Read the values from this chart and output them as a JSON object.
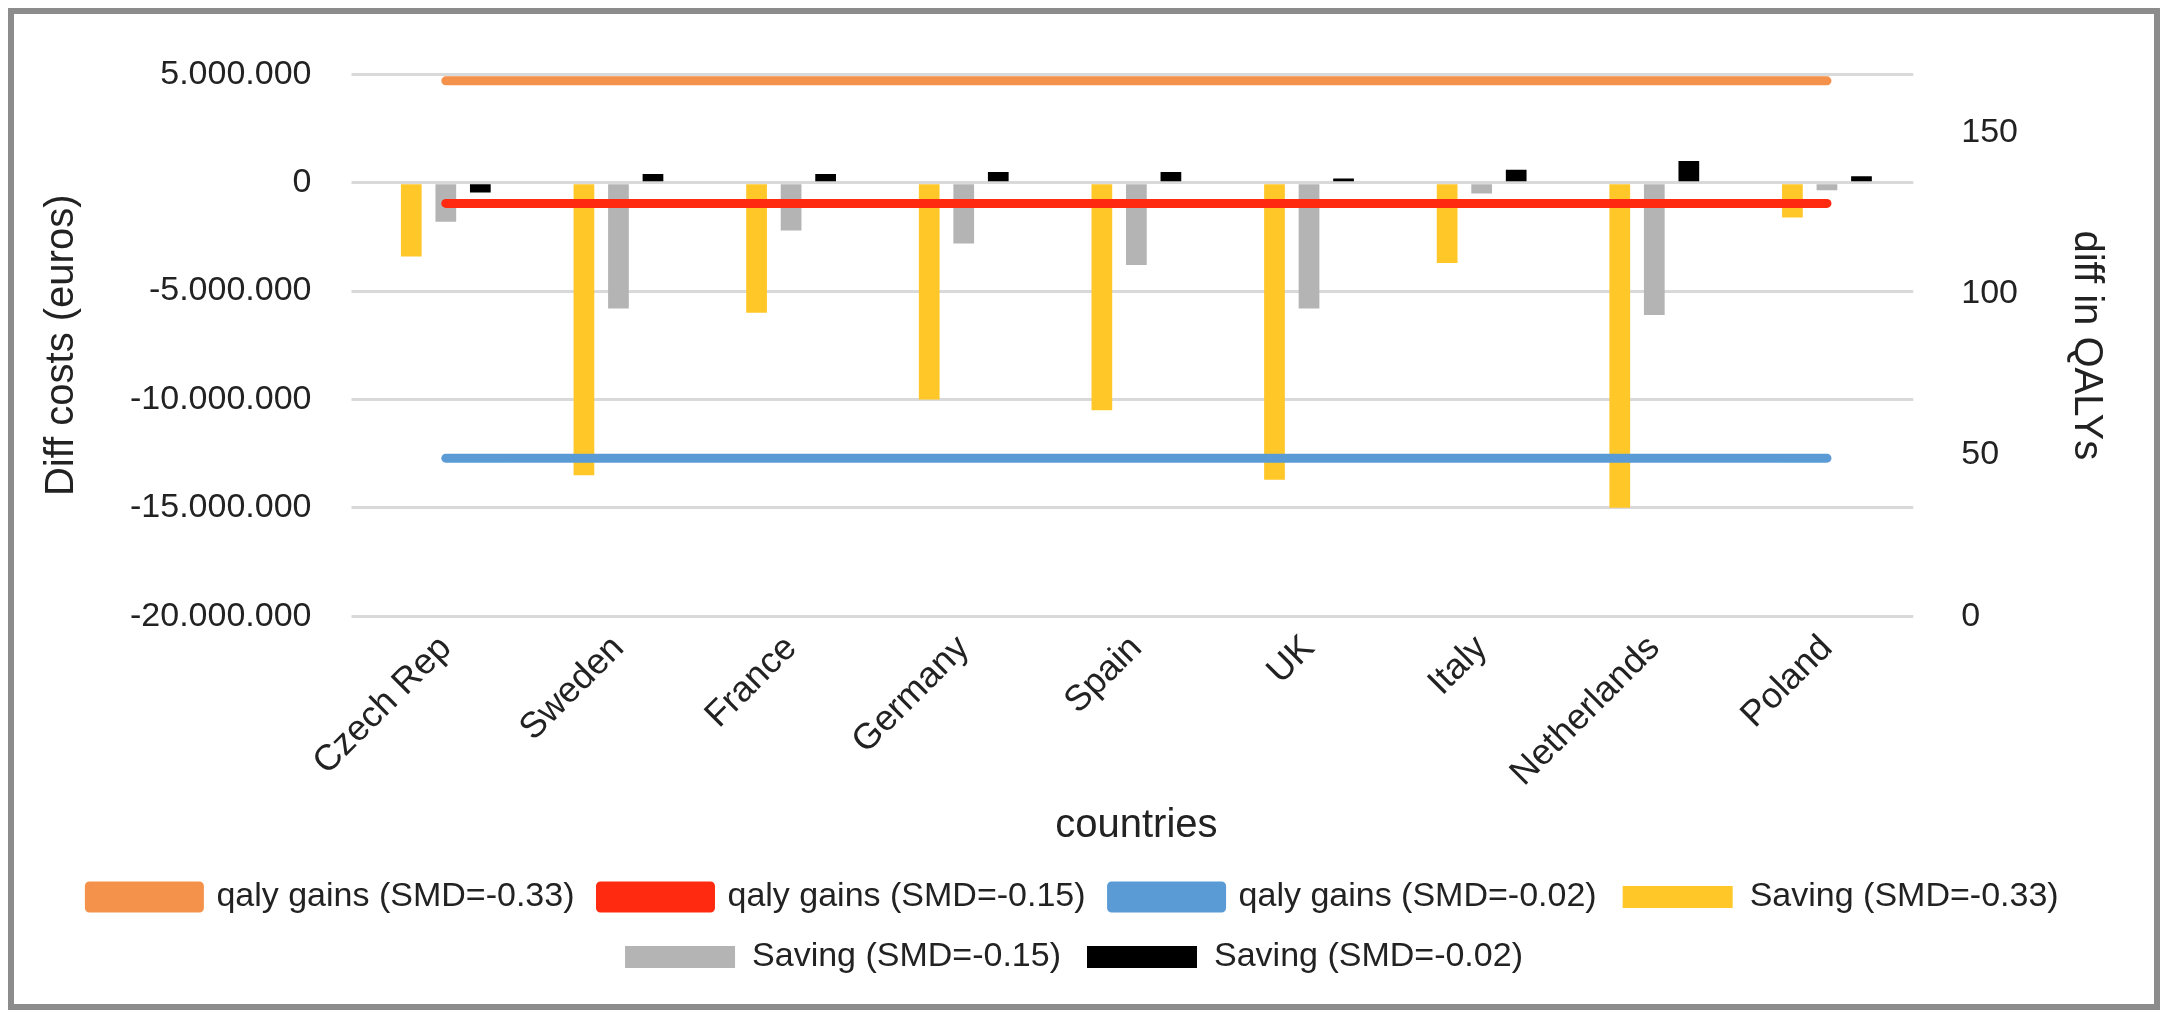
{
  "chart_data": {
    "type": "bar",
    "xlabel": "countries",
    "ylabel": "Diff costs (euros)",
    "y2label": "diff in QALYs",
    "categories": [
      "Czech Rep",
      "Sweden",
      "France",
      "Germany",
      "Spain",
      "UK",
      "Italy",
      "Netherlands",
      "Poland"
    ],
    "series": [
      {
        "name": "Saving (SMD=-0.33)",
        "color": "#ffc728",
        "values": [
          -3400000,
          -13500000,
          -6000000,
          -10000000,
          -10500000,
          -13700000,
          -3700000,
          -15000000,
          -1600000
        ]
      },
      {
        "name": "Saving (SMD=-0.15)",
        "color": "#b4b4b4",
        "values": [
          -1800000,
          -5800000,
          -2200000,
          -2800000,
          -3800000,
          -5800000,
          -500000,
          -6100000,
          -350000
        ]
      },
      {
        "name": "Saving (SMD=-0.02)",
        "color": "#000000",
        "values": [
          -450000,
          400000,
          400000,
          500000,
          500000,
          200000,
          600000,
          1000000,
          300000
        ]
      },
      {
        "name": "qaly gains (SMD=-0.33)",
        "type": "line",
        "axis": "y2",
        "color": "#f4914a",
        "values": [
          166,
          166,
          166,
          166,
          166,
          166,
          166,
          166,
          166
        ]
      },
      {
        "name": "qaly gains (SMD=-0.15)",
        "type": "line",
        "axis": "y2",
        "color": "#ff2a10",
        "values": [
          128,
          128,
          128,
          128,
          128,
          128,
          128,
          128,
          128
        ]
      },
      {
        "name": "qaly gains (SMD=-0.02)",
        "type": "line",
        "axis": "y2",
        "color": "#5b9bd5",
        "values": [
          49,
          49,
          49,
          49,
          49,
          49,
          49,
          49,
          49
        ]
      }
    ],
    "ylim": [
      -20000000,
      5000000
    ],
    "yticks": [
      {
        "value": -20000000,
        "label": "-20.000.000"
      },
      {
        "value": -15000000,
        "label": "-15.000.000"
      },
      {
        "value": -10000000,
        "label": "-10.000.000"
      },
      {
        "value": -5000000,
        "label": "-5.000.000"
      },
      {
        "value": 0,
        "label": "0"
      },
      {
        "value": 5000000,
        "label": "5.000.000"
      }
    ],
    "y2lim": [
      0,
      168
    ],
    "y2ticks": [
      0,
      50,
      100,
      150
    ],
    "grid": "y",
    "legend": "bottom",
    "marker": "none",
    "line_style": "solid"
  }
}
